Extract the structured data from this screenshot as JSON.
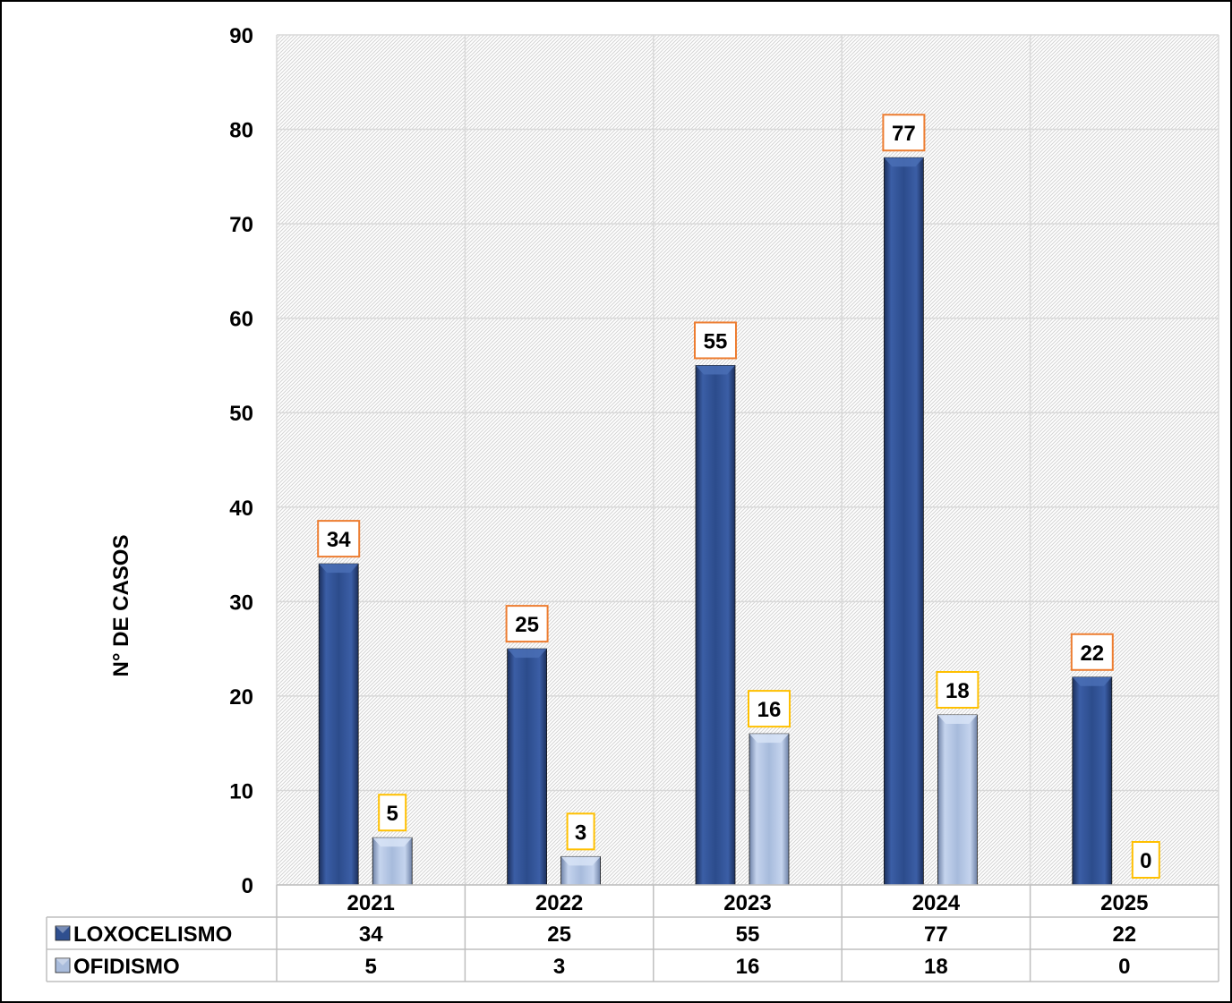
{
  "chart_data": {
    "type": "bar",
    "title": "",
    "xlabel": "",
    "ylabel": "N° DE CASOS",
    "categories": [
      "2021",
      "2022",
      "2023",
      "2024",
      "2025"
    ],
    "ylim": [
      0,
      90
    ],
    "yticks": [
      0,
      10,
      20,
      30,
      40,
      50,
      60,
      70,
      80,
      90
    ],
    "grid": true,
    "legend_placement": "data-table",
    "series": [
      {
        "name": "LOXOCELISMO",
        "values": [
          34,
          25,
          55,
          77,
          22
        ],
        "color": "#2f4f8f",
        "label_border": "#ed7d31"
      },
      {
        "name": "OFIDISMO",
        "values": [
          5,
          3,
          16,
          18,
          0
        ],
        "color": "#a9bcdc",
        "label_border": "#ffc000"
      }
    ]
  }
}
